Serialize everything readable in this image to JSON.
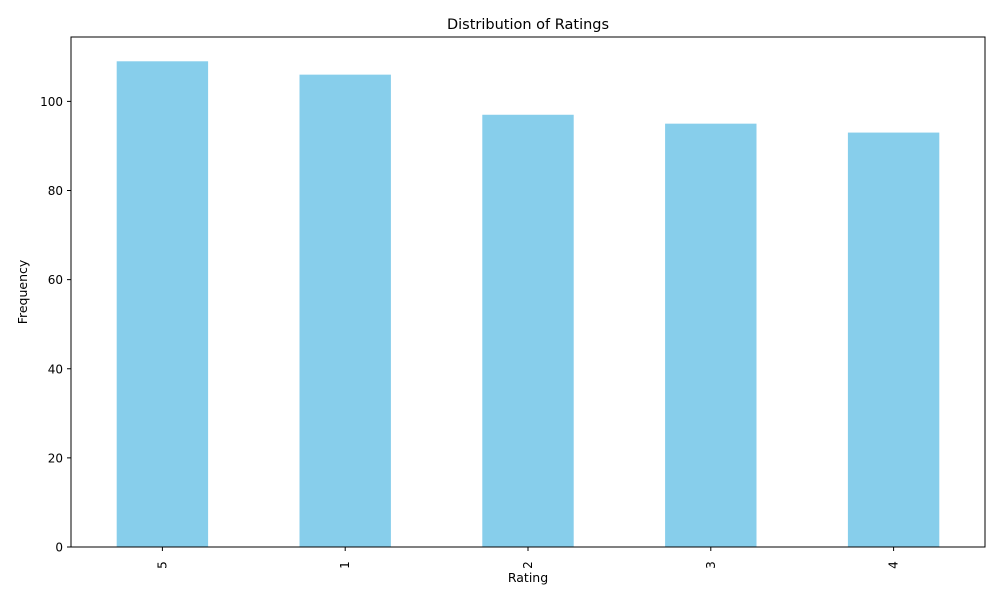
{
  "chart_data": {
    "type": "bar",
    "title": "Distribution of Ratings",
    "xlabel": "Rating",
    "ylabel": "Frequency",
    "categories": [
      "5",
      "1",
      "2",
      "3",
      "4"
    ],
    "values": [
      109,
      106,
      97,
      95,
      93
    ],
    "ylim": [
      0,
      114.45
    ],
    "yticks": [
      0,
      20,
      40,
      60,
      80,
      100
    ],
    "bar_color": "#87ceeb",
    "grid": false,
    "legend": "none"
  }
}
